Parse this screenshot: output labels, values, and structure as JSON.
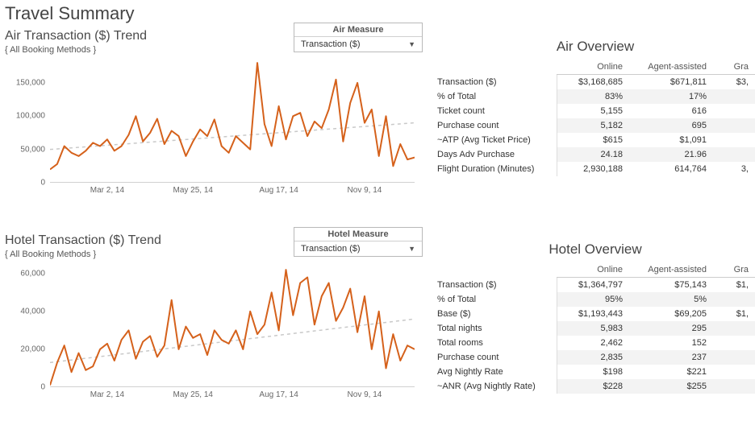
{
  "title": "Travel Summary",
  "colors": {
    "line": "#d5611b",
    "trend": "#c9c9c9",
    "axis_text": "#666666",
    "bg": "#ffffff"
  },
  "air": {
    "chart": {
      "title": "Air Transaction ($) Trend",
      "subtitle": "{ All Booking Methods }",
      "measure_label": "Air Measure",
      "measure_selected": "Transaction ($)",
      "type": "line",
      "line_color": "#d5611b",
      "line_width": 2,
      "trend_color": "#c9c9c9",
      "trend_dash": "4 4",
      "ylim": [
        0,
        185000
      ],
      "yticks": [
        0,
        50000,
        100000,
        150000
      ],
      "ytick_labels": [
        "0",
        "50,000",
        "100,000",
        "150,000"
      ],
      "x_count": 52,
      "x_ticks": [
        {
          "i": 8,
          "label": "Mar 2, 14"
        },
        {
          "i": 20,
          "label": "May 25, 14"
        },
        {
          "i": 32,
          "label": "Aug 17, 14"
        },
        {
          "i": 44,
          "label": "Nov 9, 14"
        }
      ],
      "values": [
        20000,
        28000,
        55000,
        45000,
        40000,
        48000,
        60000,
        55000,
        65000,
        48000,
        55000,
        72000,
        100000,
        62000,
        75000,
        96000,
        58000,
        78000,
        70000,
        40000,
        62000,
        80000,
        70000,
        95000,
        55000,
        45000,
        70000,
        60000,
        50000,
        180000,
        88000,
        55000,
        115000,
        65000,
        100000,
        105000,
        70000,
        92000,
        82000,
        110000,
        155000,
        62000,
        120000,
        150000,
        90000,
        110000,
        40000,
        100000,
        25000,
        58000,
        35000,
        38000
      ],
      "trend": {
        "y_start": 50000,
        "y_end": 90000
      }
    },
    "overview": {
      "title": "Air Overview",
      "columns": [
        "Online",
        "Agent-assisted",
        "Gra"
      ],
      "rows": [
        {
          "label": "Transaction ($)",
          "vals": [
            "$3,168,685",
            "$671,811",
            "$3,"
          ]
        },
        {
          "label": "% of Total",
          "vals": [
            "83%",
            "17%",
            ""
          ]
        },
        {
          "label": "Ticket count",
          "vals": [
            "5,155",
            "616",
            ""
          ]
        },
        {
          "label": "Purchase count",
          "vals": [
            "5,182",
            "695",
            ""
          ]
        },
        {
          "label": "~ATP (Avg Ticket Price)",
          "vals": [
            "$615",
            "$1,091",
            ""
          ]
        },
        {
          "label": "Days Adv Purchase",
          "vals": [
            "24.18",
            "21.96",
            ""
          ]
        },
        {
          "label": "Flight Duration (Minutes)",
          "vals": [
            "2,930,188",
            "614,764",
            "3,"
          ]
        }
      ]
    }
  },
  "hotel": {
    "chart": {
      "title": "Hotel Transaction ($) Trend",
      "subtitle": "{ All Booking Methods }",
      "measure_label": "Hotel Measure",
      "measure_selected": "Transaction ($)",
      "type": "line",
      "line_color": "#d5611b",
      "line_width": 2,
      "trend_color": "#c9c9c9",
      "trend_dash": "4 4",
      "ylim": [
        0,
        65000
      ],
      "yticks": [
        0,
        20000,
        40000,
        60000
      ],
      "ytick_labels": [
        "0",
        "20,000",
        "40,000",
        "60,000"
      ],
      "x_count": 52,
      "x_ticks": [
        {
          "i": 8,
          "label": "Mar 2, 14"
        },
        {
          "i": 20,
          "label": "May 25, 14"
        },
        {
          "i": 32,
          "label": "Aug 17, 14"
        },
        {
          "i": 44,
          "label": "Nov 9, 14"
        }
      ],
      "values": [
        1000,
        13000,
        22000,
        8000,
        18000,
        9000,
        11000,
        20000,
        23000,
        14000,
        25000,
        30000,
        15000,
        24000,
        27000,
        16000,
        22000,
        46000,
        20000,
        32000,
        26000,
        28000,
        17000,
        30000,
        25000,
        23000,
        30000,
        20000,
        40000,
        28000,
        33000,
        50000,
        30000,
        62000,
        38000,
        55000,
        58000,
        33000,
        48000,
        55000,
        35000,
        42000,
        52000,
        29000,
        48000,
        20000,
        40000,
        10000,
        28000,
        14000,
        22000,
        20000
      ],
      "trend": {
        "y_start": 13000,
        "y_end": 36000
      }
    },
    "overview": {
      "title": "Hotel Overview",
      "columns": [
        "Online",
        "Agent-assisted",
        "Gra"
      ],
      "rows": [
        {
          "label": "Transaction ($)",
          "vals": [
            "$1,364,797",
            "$75,143",
            "$1,"
          ]
        },
        {
          "label": "% of Total",
          "vals": [
            "95%",
            "5%",
            ""
          ]
        },
        {
          "label": "Base ($)",
          "vals": [
            "$1,193,443",
            "$69,205",
            "$1,"
          ]
        },
        {
          "label": "Total nights",
          "vals": [
            "5,983",
            "295",
            ""
          ]
        },
        {
          "label": "Total rooms",
          "vals": [
            "2,462",
            "152",
            ""
          ]
        },
        {
          "label": "Purchase count",
          "vals": [
            "2,835",
            "237",
            ""
          ]
        },
        {
          "label": "Avg Nightly Rate",
          "vals": [
            "$198",
            "$221",
            ""
          ]
        },
        {
          "label": "~ANR (Avg Nightly Rate)",
          "vals": [
            "$228",
            "$255",
            ""
          ]
        }
      ]
    }
  }
}
